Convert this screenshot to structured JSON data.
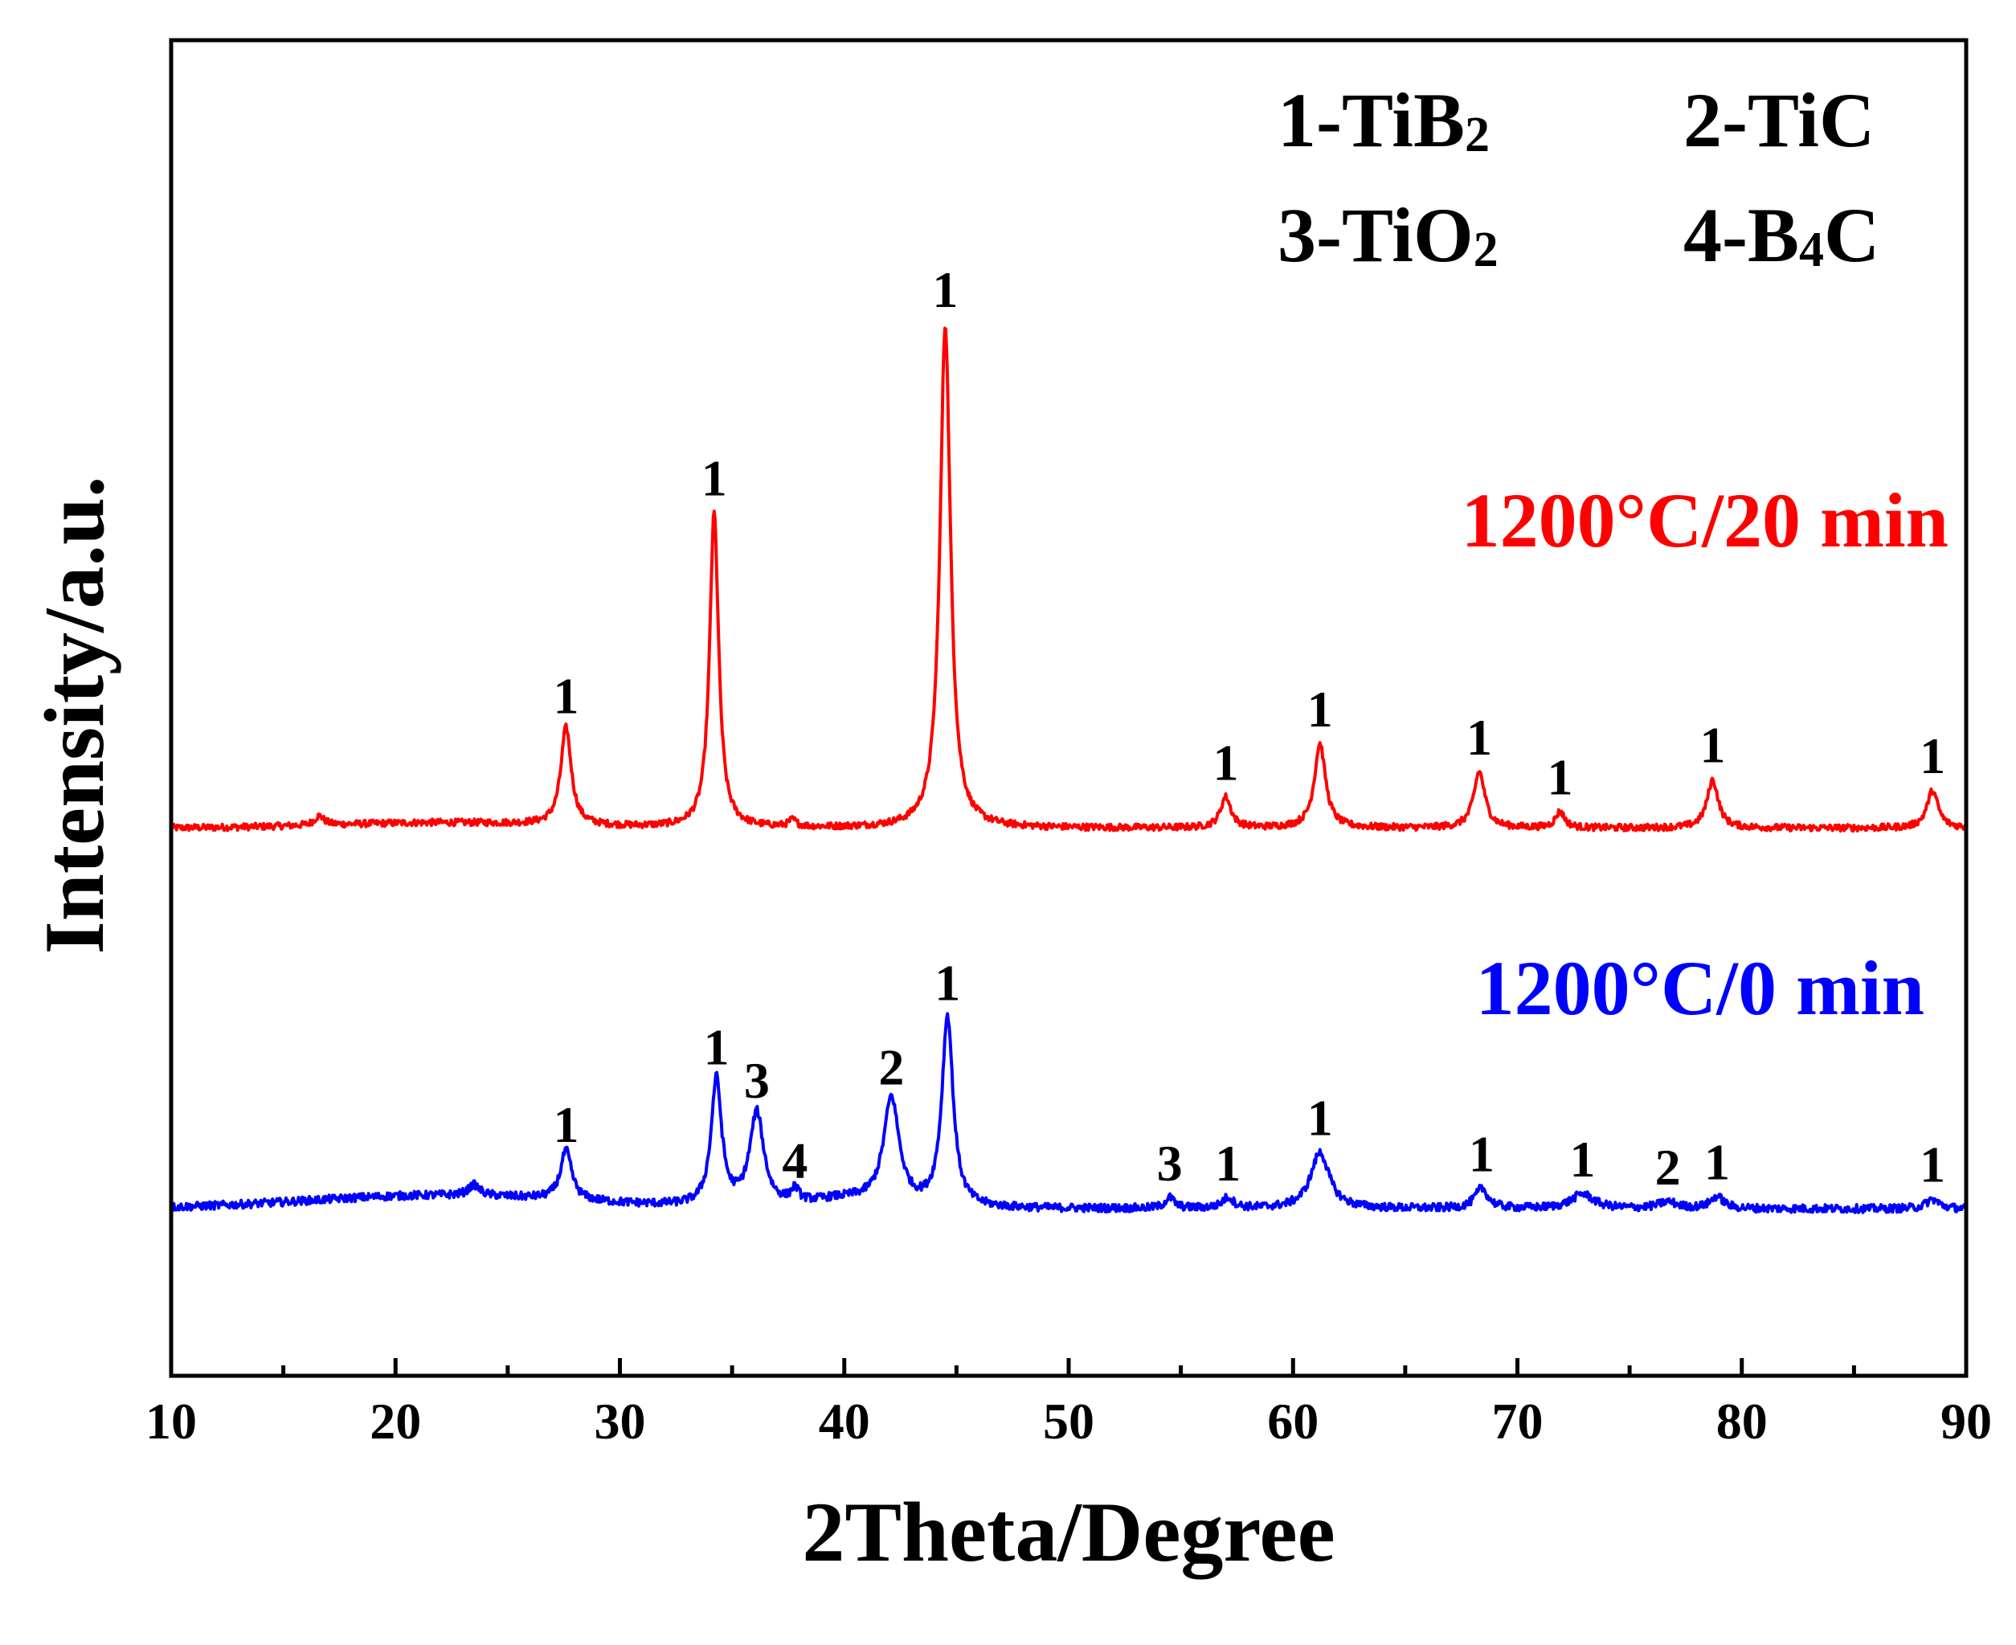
{
  "chart_data": {
    "type": "line",
    "xlabel": "2Theta/Degree",
    "ylabel": "Intensity/a.u.",
    "xlim": [
      10,
      90
    ],
    "ylim": [
      0,
      100
    ],
    "x_ticks": [
      10,
      20,
      30,
      40,
      50,
      60,
      70,
      80,
      90
    ],
    "x_minor_step": 5,
    "y_ticks_shown": false,
    "grid": false,
    "legend": {
      "placement": "top-right",
      "entries": [
        {
          "num": "1",
          "text": "-TiB",
          "sub": "2"
        },
        {
          "num": "2",
          "text": "-TiC",
          "sub": ""
        },
        {
          "num": "3",
          "text": "-TiO",
          "sub": "2"
        },
        {
          "num": "4",
          "text": "-B",
          "sub": "4",
          "tail": "C"
        }
      ]
    },
    "series": [
      {
        "label": "1200°C/20 min",
        "color": "#ff0000",
        "baseline": 41,
        "noise": 0.25,
        "peaks": [
          {
            "x": 16.6,
            "h": 0.7,
            "w": 0.25
          },
          {
            "x": 27.6,
            "h": 7.3,
            "w": 0.28
          },
          {
            "x": 34.2,
            "h": 23.6,
            "w": 0.24
          },
          {
            "x": 37.7,
            "h": 0.5,
            "w": 0.2
          },
          {
            "x": 44.5,
            "h": 37.7,
            "w": 0.28
          },
          {
            "x": 57.0,
            "h": 2.3,
            "w": 0.28
          },
          {
            "x": 61.2,
            "h": 6.3,
            "w": 0.3
          },
          {
            "x": 68.3,
            "h": 4.2,
            "w": 0.3
          },
          {
            "x": 71.9,
            "h": 1.2,
            "w": 0.25
          },
          {
            "x": 78.7,
            "h": 3.6,
            "w": 0.3
          },
          {
            "x": 88.5,
            "h": 2.8,
            "w": 0.3
          }
        ],
        "humps": [
          {
            "x": 22,
            "h": 0.4,
            "w": 5
          }
        ],
        "annotations": [
          {
            "x": 27.6,
            "text": "1"
          },
          {
            "x": 34.2,
            "text": "1"
          },
          {
            "x": 44.5,
            "text": "1"
          },
          {
            "x": 57.0,
            "text": "1"
          },
          {
            "x": 61.2,
            "text": "1"
          },
          {
            "x": 68.3,
            "text": "1"
          },
          {
            "x": 71.9,
            "text": "1"
          },
          {
            "x": 78.7,
            "text": "1"
          },
          {
            "x": 88.5,
            "text": "1"
          }
        ]
      },
      {
        "label": "1200°C/0 min",
        "color": "#0000ff",
        "baseline": 12.5,
        "noise": 0.3,
        "peaks": [
          {
            "x": 23.5,
            "h": 0.8,
            "w": 0.3
          },
          {
            "x": 27.6,
            "h": 3.7,
            "w": 0.3
          },
          {
            "x": 34.3,
            "h": 9.5,
            "w": 0.28
          },
          {
            "x": 36.1,
            "h": 7.0,
            "w": 0.38
          },
          {
            "x": 37.8,
            "h": 1.0,
            "w": 0.22
          },
          {
            "x": 42.1,
            "h": 8.0,
            "w": 0.42
          },
          {
            "x": 44.6,
            "h": 14.3,
            "w": 0.3
          },
          {
            "x": 54.5,
            "h": 0.8,
            "w": 0.25
          },
          {
            "x": 57.1,
            "h": 0.8,
            "w": 0.3
          },
          {
            "x": 61.2,
            "h": 4.2,
            "w": 0.5
          },
          {
            "x": 68.4,
            "h": 1.5,
            "w": 0.35
          },
          {
            "x": 72.9,
            "h": 1.1,
            "w": 0.6
          },
          {
            "x": 76.7,
            "h": 0.5,
            "w": 0.5
          },
          {
            "x": 78.9,
            "h": 0.9,
            "w": 0.35
          },
          {
            "x": 88.5,
            "h": 0.7,
            "w": 0.35
          }
        ],
        "humps": [
          {
            "x": 22,
            "h": 1.0,
            "w": 6
          },
          {
            "x": 40,
            "h": 0.6,
            "w": 1.5
          }
        ],
        "annotations": [
          {
            "x": 27.6,
            "text": "1"
          },
          {
            "x": 34.3,
            "text": "1"
          },
          {
            "x": 36.1,
            "text": "3"
          },
          {
            "x": 37.8,
            "text": "4"
          },
          {
            "x": 42.1,
            "text": "2"
          },
          {
            "x": 44.6,
            "text": "1"
          },
          {
            "x": 54.5,
            "text": "3"
          },
          {
            "x": 57.1,
            "text": "1"
          },
          {
            "x": 61.2,
            "text": "1"
          },
          {
            "x": 68.4,
            "text": "1"
          },
          {
            "x": 72.9,
            "text": "1"
          },
          {
            "x": 76.7,
            "text": "2"
          },
          {
            "x": 78.9,
            "text": "1"
          },
          {
            "x": 88.5,
            "text": "1"
          }
        ]
      }
    ]
  }
}
